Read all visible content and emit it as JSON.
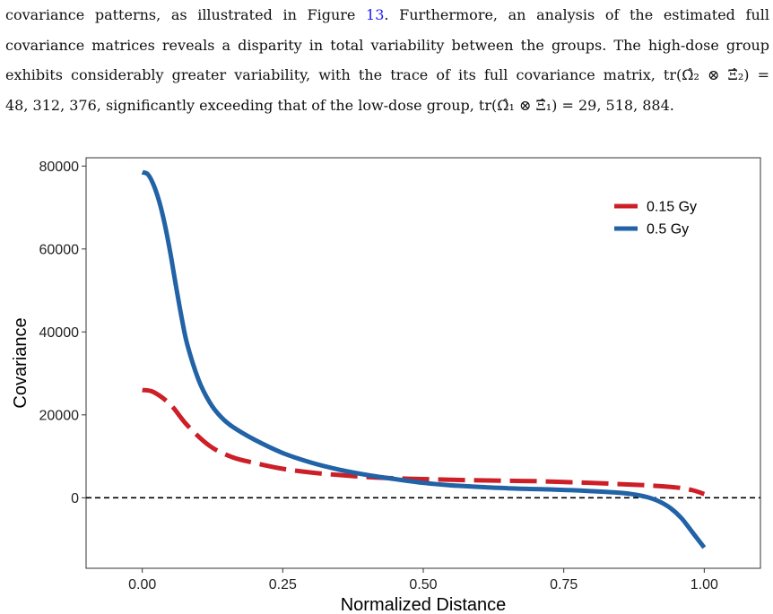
{
  "text": {
    "line1_before": "covariance patterns, as illustrated in Figure",
    "line1_link": "13",
    "line1_after": ". Furthermore, an analysis of the estimated full",
    "line2": "covariance matrices reveals a disparity in total variability between the groups. The high-dose group",
    "line3": "exhibits considerably greater variability, with the trace of its full covariance matrix, tr(Ω̂₂ ⊗ Ξ̂₂) =",
    "line4": "48, 312, 376, significantly exceeding that of the low-dose group, tr(Ω̂₁ ⊗ Ξ̂₁) = 29, 518, 884."
  },
  "chart_data": {
    "type": "line",
    "xlabel": "Normalized Distance",
    "ylabel": "Covariance",
    "xlim": [
      -0.1,
      1.1
    ],
    "ylim": [
      -17000,
      82000
    ],
    "xticks": [
      0.0,
      0.25,
      0.5,
      0.75,
      1.0
    ],
    "xtick_labels": [
      "0.00",
      "0.25",
      "0.50",
      "0.75",
      "1.00"
    ],
    "yticks": [
      0,
      20000,
      40000,
      60000,
      80000
    ],
    "ytick_labels": [
      "0",
      "20000",
      "40000",
      "60000",
      "80000"
    ],
    "hline": 0,
    "legend_position": "top-right",
    "series": [
      {
        "name": "0.15 Gy",
        "color": "#cc1f27",
        "style": "dashed",
        "x": [
          0.0,
          0.02,
          0.05,
          0.08,
          0.12,
          0.16,
          0.2,
          0.25,
          0.3,
          0.35,
          0.4,
          0.45,
          0.5,
          0.55,
          0.6,
          0.65,
          0.7,
          0.75,
          0.8,
          0.85,
          0.9,
          0.95,
          0.98,
          1.0
        ],
        "values": [
          26000,
          25500,
          22500,
          17500,
          12500,
          9800,
          8400,
          7000,
          6100,
          5500,
          5000,
          4700,
          4500,
          4350,
          4200,
          4100,
          4000,
          3800,
          3600,
          3300,
          3000,
          2500,
          1800,
          900
        ]
      },
      {
        "name": "0.5 Gy",
        "color": "#2163a6",
        "style": "solid",
        "x": [
          0.0,
          0.01,
          0.02,
          0.03,
          0.04,
          0.05,
          0.06,
          0.07,
          0.08,
          0.1,
          0.12,
          0.14,
          0.16,
          0.2,
          0.25,
          0.3,
          0.35,
          0.4,
          0.45,
          0.5,
          0.55,
          0.6,
          0.65,
          0.7,
          0.75,
          0.8,
          0.85,
          0.88,
          0.9,
          0.92,
          0.94,
          0.96,
          0.98,
          1.0
        ],
        "values": [
          78500,
          78000,
          75500,
          71500,
          66000,
          59000,
          51000,
          43500,
          37000,
          28500,
          23000,
          19500,
          17200,
          14000,
          10800,
          8500,
          6800,
          5500,
          4500,
          3600,
          3000,
          2600,
          2300,
          2100,
          1900,
          1600,
          1200,
          700,
          100,
          -900,
          -2500,
          -5000,
          -8500,
          -12000
        ]
      }
    ]
  }
}
